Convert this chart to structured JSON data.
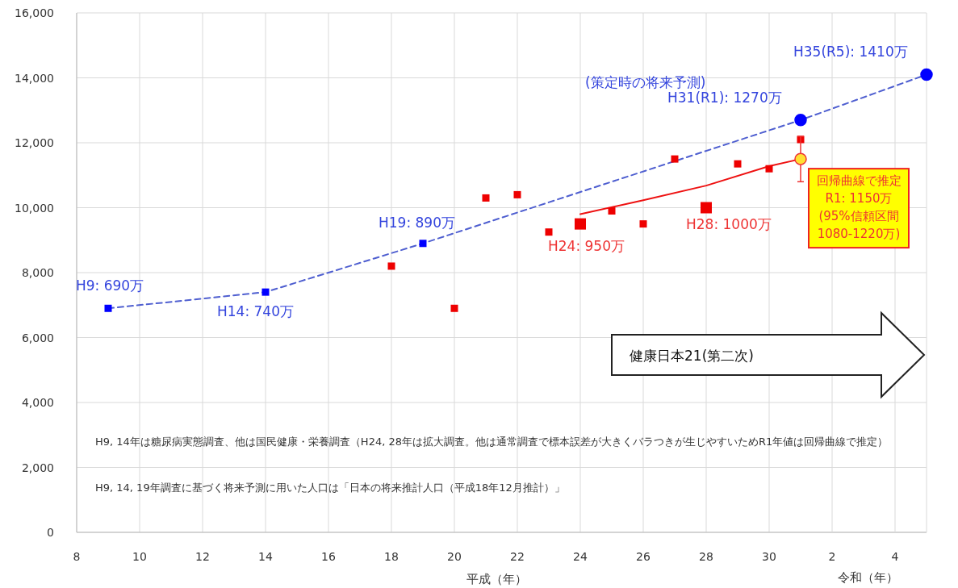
{
  "chart_data": {
    "type": "scatter",
    "xlabel": "平成（年）",
    "xlim": [
      8,
      35
    ],
    "ylim": [
      0,
      16000
    ],
    "xticks": [
      8,
      10,
      12,
      14,
      16,
      18,
      20,
      22,
      24,
      26,
      28,
      30
    ],
    "x2lim": [
      -22,
      5
    ],
    "x2ticks": [
      2,
      4
    ],
    "x2label": "令和（年）",
    "yticks": [
      {
        "value": 0,
        "label": "0"
      },
      {
        "value": 2000,
        "label": "2,000"
      },
      {
        "value": 4000,
        "label": "4,000"
      },
      {
        "value": 6000,
        "label": "6,000"
      },
      {
        "value": 8000,
        "label": "8,000"
      },
      {
        "value": 10000,
        "label": "10,000"
      },
      {
        "value": 12000,
        "label": "12,000"
      },
      {
        "value": 14000,
        "label": "14,000"
      },
      {
        "value": 16000,
        "label": "16,000"
      }
    ],
    "grid": true,
    "series": [
      {
        "type": "line",
        "color": "#4f5fd0",
        "line_style": "dashed",
        "marker": "none",
        "x": [
          9,
          14,
          19,
          31,
          35
        ],
        "values": [
          6900,
          7400,
          8900,
          12700,
          14100
        ]
      },
      {
        "color": "#0000ff",
        "marker": "square",
        "x": [
          9,
          14,
          19
        ],
        "values": [
          6900,
          7400,
          8900
        ]
      },
      {
        "color": "#0000ff",
        "marker": "circle",
        "x": [
          31,
          35
        ],
        "values": [
          12700,
          14100
        ]
      },
      {
        "type": "line",
        "color": "#ee1111",
        "line_style": "solid",
        "marker": "none",
        "x": [
          24,
          26,
          28,
          30,
          31
        ],
        "values": [
          9800,
          10230,
          10680,
          11280,
          11500
        ]
      },
      {
        "color": "#ee0000",
        "marker": "square",
        "x": [
          18,
          20,
          21,
          22,
          23,
          25,
          26,
          27,
          29,
          30,
          31
        ],
        "values": [
          8200,
          6900,
          10300,
          10400,
          9250,
          9900,
          9500,
          11500,
          11350,
          11200,
          12100
        ]
      },
      {
        "color": "#ee0000",
        "marker": "square",
        "x": [
          24,
          28
        ],
        "values": [
          9500,
          10000
        ]
      },
      {
        "color": "#ffe033",
        "marker": "circle",
        "x": [
          31
        ],
        "values": [
          11500
        ],
        "errors": [
          [
            10800,
            12200
          ]
        ]
      }
    ],
    "annotations": [
      {
        "text": "H9: 690万",
        "x": 9,
        "y": 6900
      },
      {
        "text": "H14: 740万",
        "x": 14,
        "y": 7400
      },
      {
        "text": "H19: 890万",
        "x": 19,
        "y": 8900
      },
      {
        "text": "H31(R1): 1270万",
        "x": 31,
        "y": 12700
      },
      {
        "text": "H35(R5): 1410万",
        "x": 35,
        "y": 14100
      },
      "(策定時の将来予測)",
      {
        "text": "H24: 950万",
        "x": 24,
        "y": 9500
      },
      {
        "text": "H28: 1000万",
        "x": 28,
        "y": 10000
      },
      {
        "text": "回帰曲線で推定\nR1: 1150万\n(95%信頼区間\n1080-1220万)",
        "x": 31,
        "y": 11500
      },
      "健康日本21(第二次)",
      "H9, 14年は糖尿病実態調査、他は国民健康・栄養調査（H24, 28年は拡大調査。他は通常調査で標本誤差が大きくバラつきが生じやすいためR1年値は回帰曲線で推定）",
      "H9, 14, 19年調査に基づく将来予測に用いた人口は「日本の将来推計人口（平成18年12月推計）」"
    ]
  }
}
